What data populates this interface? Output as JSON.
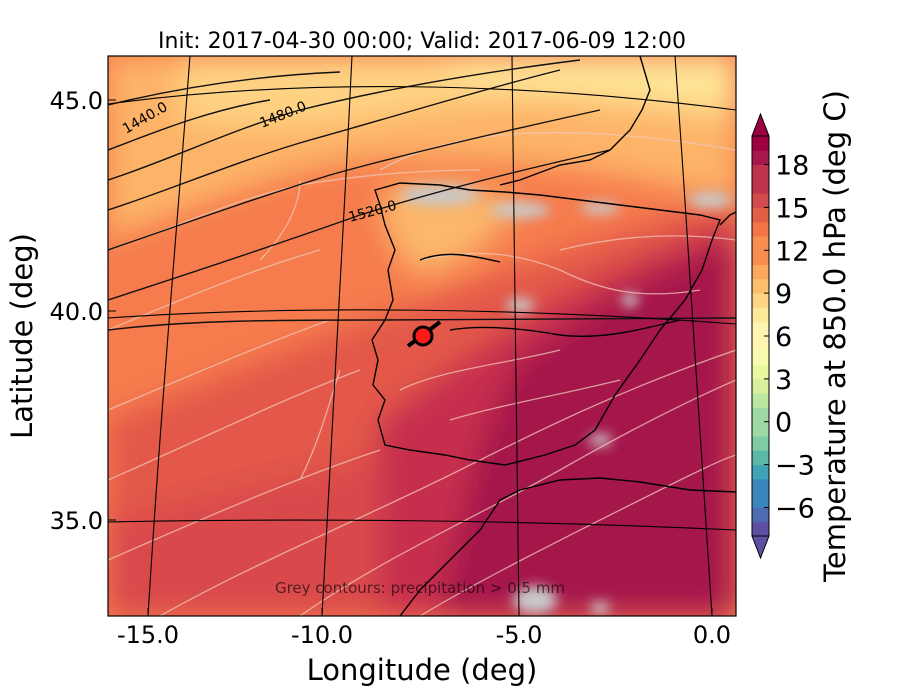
{
  "chart_data": {
    "type": "heatmap",
    "title": "Init: 2017-04-30 00:00; Valid: 2017-06-09 12:00",
    "xlabel": "Longitude (deg)",
    "ylabel": "Latitude (deg)",
    "x_ticks": [
      "-15.0",
      "-10.0",
      "-5.0",
      "0.0"
    ],
    "x_tick_values": [
      -15,
      -10,
      -5,
      0
    ],
    "y_ticks": [
      "45.0",
      "40.0",
      "35.0"
    ],
    "y_tick_values": [
      45,
      40,
      35
    ],
    "xlim": [
      -16,
      0.2
    ],
    "ylim": [
      33,
      46.2
    ],
    "colorbar": {
      "label": "Temperature at 850.0 hPa (deg C)",
      "min": -8,
      "max": 20,
      "step": 1,
      "ticks": [
        "−6",
        "−3",
        "0",
        "3",
        "6",
        "9",
        "12",
        "15",
        "18"
      ],
      "tick_values": [
        -6,
        -3,
        0,
        3,
        6,
        9,
        12,
        15,
        18
      ],
      "colors": [
        "#5e4fa2",
        "#4c6bb0",
        "#3c86bc",
        "#40a2b5",
        "#5cb9a9",
        "#7ecba4",
        "#9ed8a4",
        "#bde6a1",
        "#d8ef9e",
        "#ebf7a0",
        "#f7fbaf",
        "#fff5b0",
        "#fee89a",
        "#fed584",
        "#fdbf6f",
        "#fca95d",
        "#f88e52",
        "#f37448",
        "#e35e47",
        "#d44b4d",
        "#c0334d",
        "#a8174b",
        "#9e0142"
      ]
    },
    "geopotential_labels": [
      "1440.0",
      "1480.0",
      "1520.0"
    ],
    "precip_note": "Grey contours: precipitation > 0.5 mm",
    "marker": {
      "lon": -7.6,
      "lat": 39.4
    }
  }
}
